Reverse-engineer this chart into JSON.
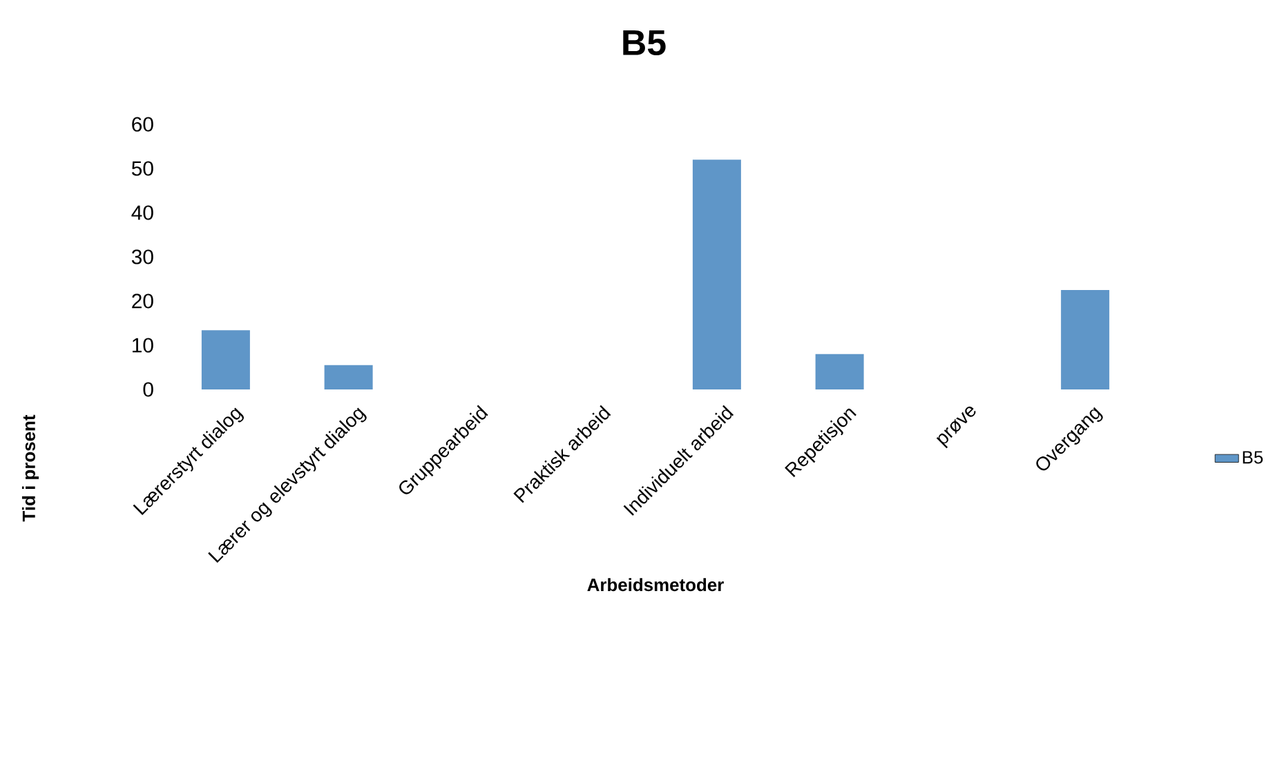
{
  "chart_data": {
    "type": "bar",
    "title": "B5",
    "xlabel": "Arbeidsmetoder",
    "ylabel": "Tid i prosent",
    "categories": [
      "Lærerstyrt dialog",
      "Lærer og elevstyrt dialog",
      "Gruppearbeid",
      "Praktisk arbeid",
      "Individuelt arbeid",
      "Repetisjon",
      "prøve",
      "Overgang"
    ],
    "series": [
      {
        "name": "B5",
        "color": "#5f96c8",
        "values": [
          13.4,
          5.5,
          0,
          0,
          52,
          8,
          0,
          22.5
        ]
      }
    ],
    "ylim": [
      0,
      60
    ],
    "yticks": [
      0,
      10,
      20,
      30,
      40,
      50,
      60
    ],
    "legend": "right"
  }
}
